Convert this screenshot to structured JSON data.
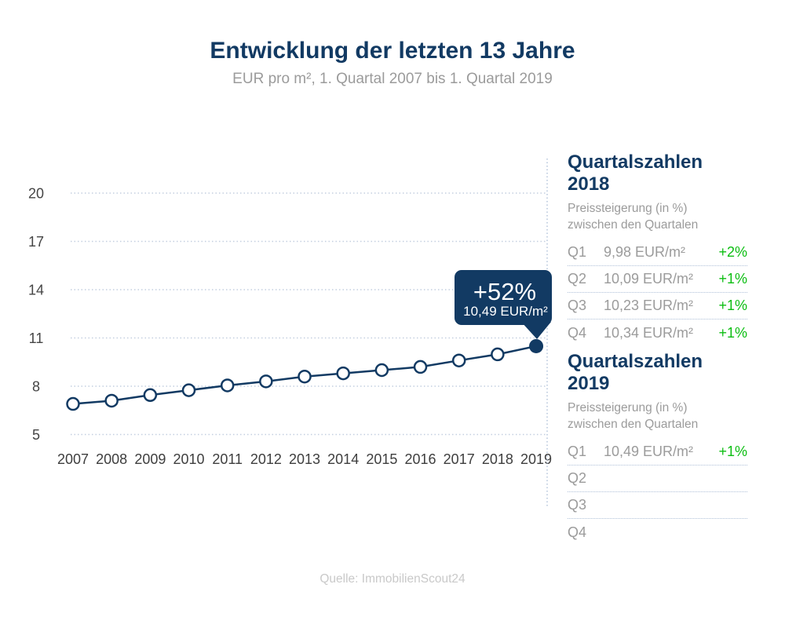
{
  "header": {
    "title": "Entwicklung der letzten 13 Jahre",
    "subtitle": "EUR pro m², 1. Quartal 2007 bis 1. Quartal 2019"
  },
  "chart_data": {
    "type": "line",
    "x": [
      2007,
      2008,
      2009,
      2010,
      2011,
      2012,
      2013,
      2014,
      2015,
      2016,
      2017,
      2018,
      2019
    ],
    "series": [
      {
        "name": "EUR pro m² (1. Quartal)",
        "values": [
          6.9,
          7.1,
          7.45,
          7.75,
          8.05,
          8.3,
          8.6,
          8.8,
          9.0,
          9.2,
          9.6,
          9.98,
          10.49
        ]
      }
    ],
    "title": "Entwicklung der letzten 13 Jahre",
    "xlabel": "",
    "ylabel": "EUR pro m²",
    "ylim": [
      5,
      20
    ],
    "yticks": [
      5,
      8,
      11,
      14,
      17,
      20
    ],
    "grid": true,
    "legend": "none",
    "annotation": {
      "percent": "+52%",
      "value": "10,49 EUR/m²",
      "anchor_x": 2019,
      "anchor_y": 10.49
    }
  },
  "panels": [
    {
      "title": "Quartalszahlen 2018",
      "subtitle_line1": "Preissteigerung (in %)",
      "subtitle_line2": "zwischen den Quartalen",
      "rows": [
        {
          "label": "Q1",
          "value": "9,98 EUR/m²",
          "change": "+2%"
        },
        {
          "label": "Q2",
          "value": "10,09 EUR/m²",
          "change": "+1%"
        },
        {
          "label": "Q3",
          "value": "10,23 EUR/m²",
          "change": "+1%"
        },
        {
          "label": "Q4",
          "value": "10,34 EUR/m²",
          "change": "+1%"
        }
      ]
    },
    {
      "title": "Quartalszahlen 2019",
      "subtitle_line1": "Preissteigerung (in %)",
      "subtitle_line2": "zwischen den Quartalen",
      "rows": [
        {
          "label": "Q1",
          "value": "10,49 EUR/m²",
          "change": "+1%"
        },
        {
          "label": "Q2",
          "value": "",
          "change": ""
        },
        {
          "label": "Q3",
          "value": "",
          "change": ""
        },
        {
          "label": "Q4",
          "value": "",
          "change": ""
        }
      ]
    }
  ],
  "footer": {
    "source": "Quelle: ImmobilienScout24"
  },
  "colors": {
    "navy": "#123A63",
    "green": "#0CBE12",
    "gray_text": "#9B9B9B",
    "axis_text": "#454545",
    "gridline": "#C4CFE0",
    "separator": "#AFC0D8",
    "footer_text": "#C9C9C9",
    "point_fill": "#FFFFFF"
  }
}
